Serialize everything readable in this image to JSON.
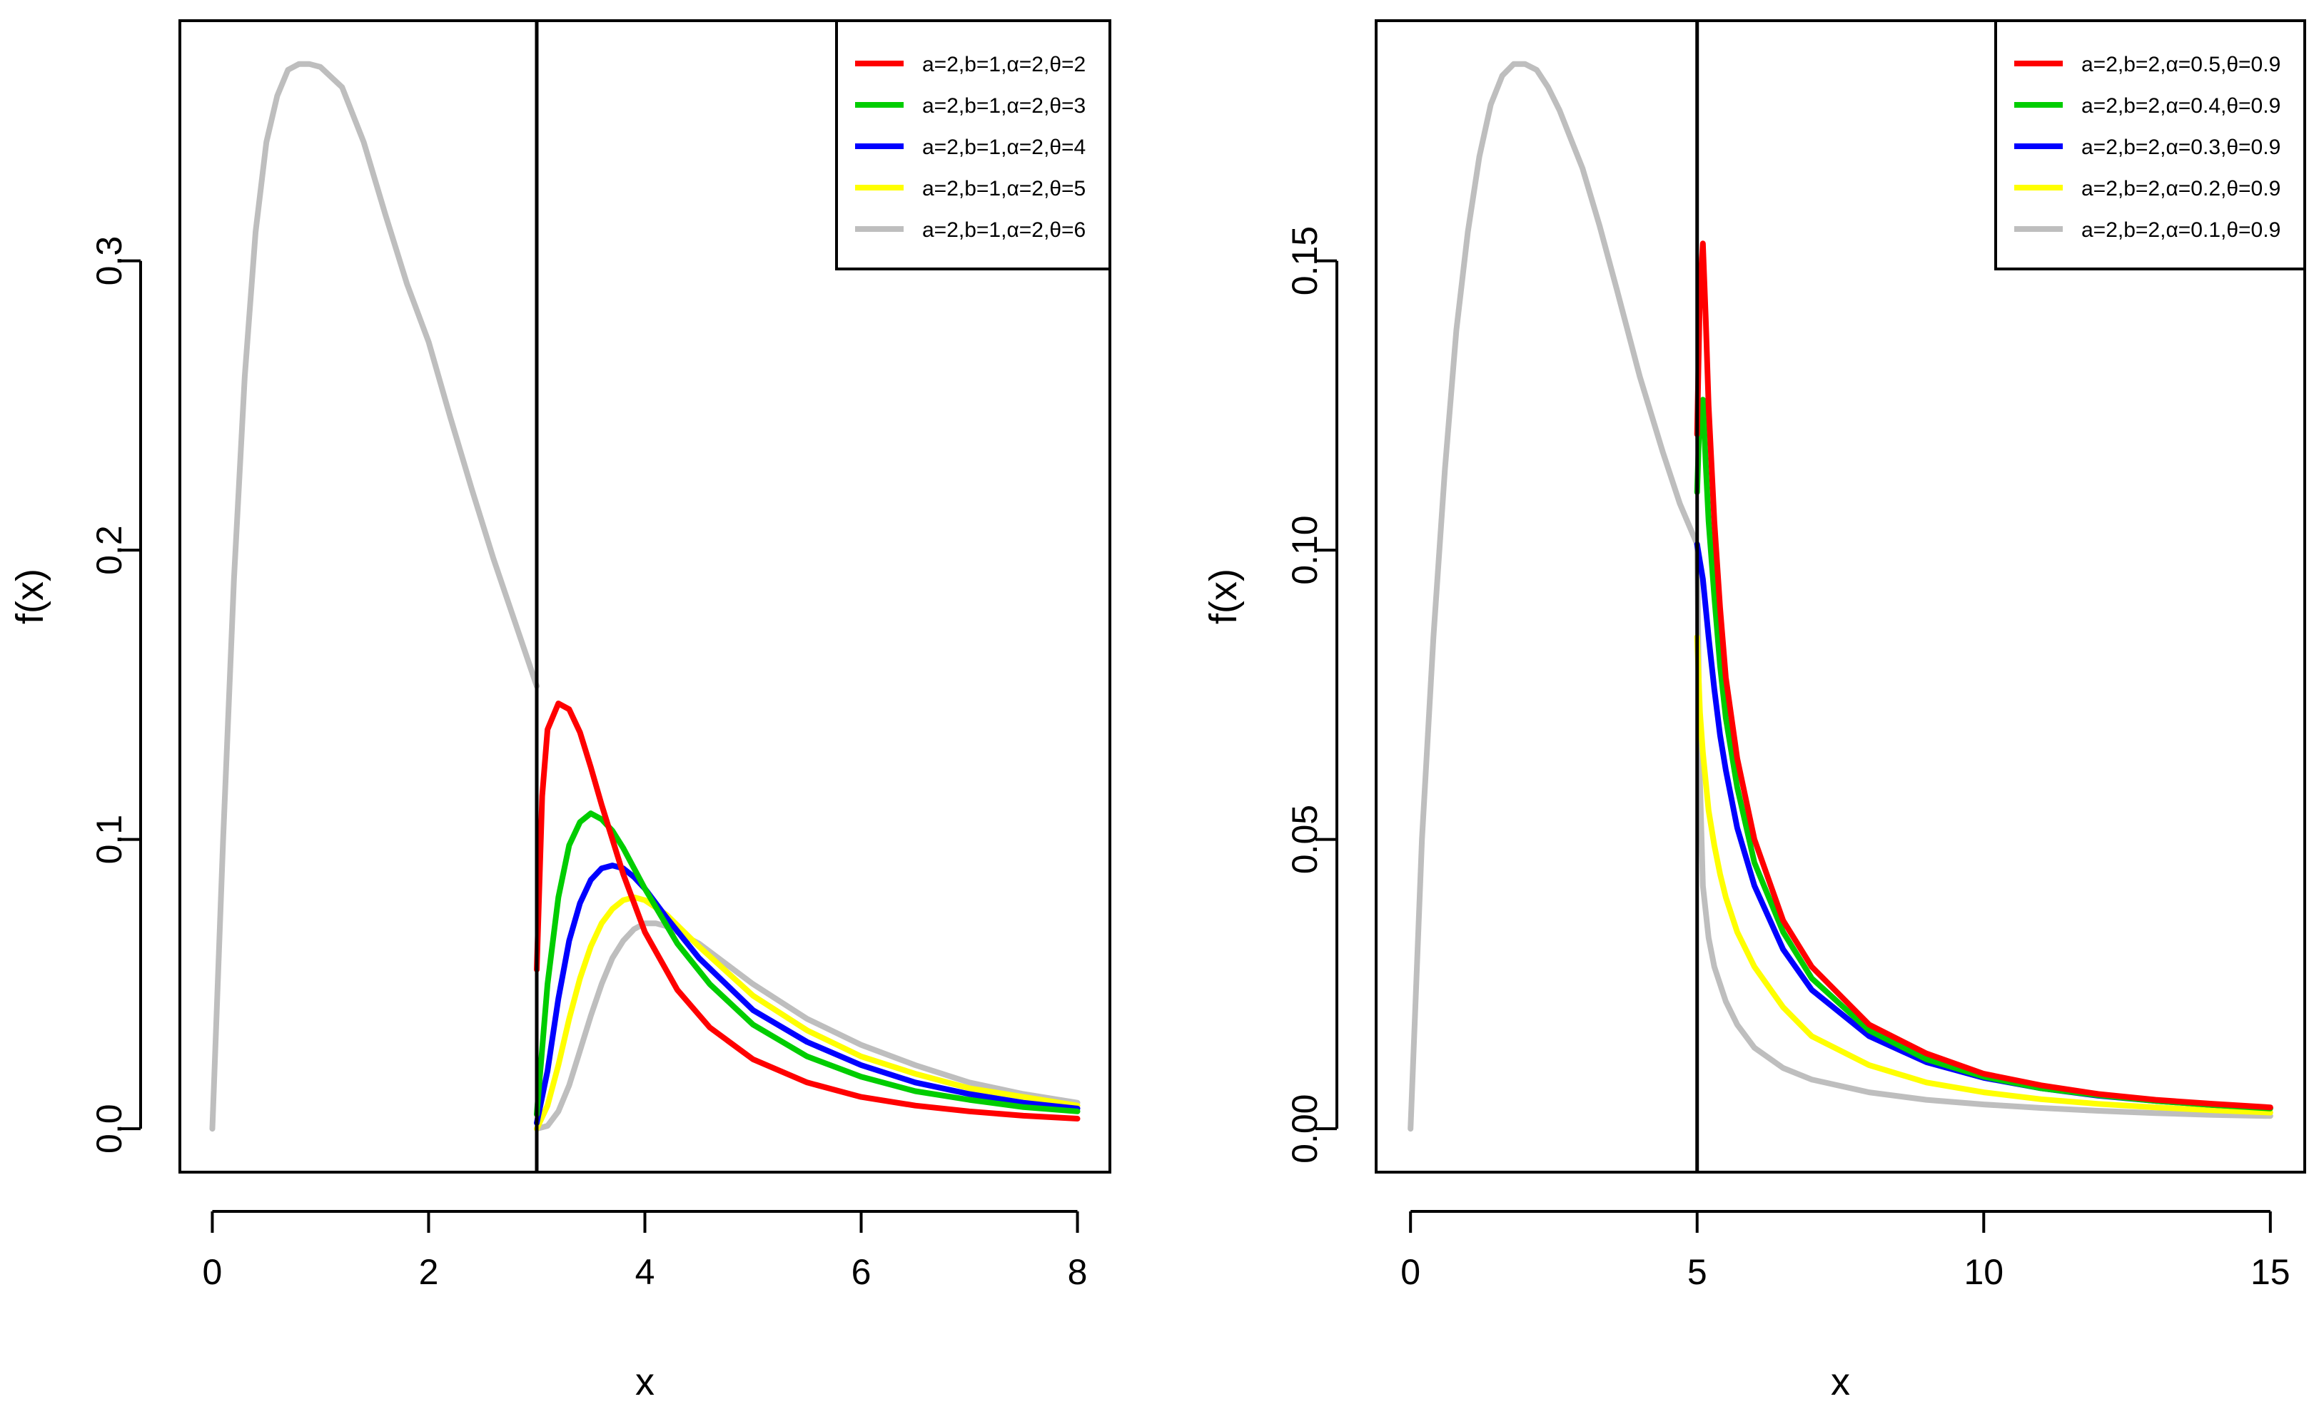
{
  "chart_data": [
    {
      "type": "line",
      "xlabel": "x",
      "ylabel": "f(x)",
      "xlim": [
        -0.3,
        8.3
      ],
      "ylim": [
        -0.015,
        0.383
      ],
      "xticks": [
        0,
        2,
        4,
        6,
        8
      ],
      "xtick_labels": [
        "0",
        "2",
        "4",
        "6",
        "8"
      ],
      "yticks": [
        0.0,
        0.1,
        0.2,
        0.3
      ],
      "ytick_labels": [
        "0.0",
        "0.1",
        "0.2",
        "0.3"
      ],
      "vline": 3,
      "legend_position": "top-right",
      "base_curve": {
        "color": "#bebebe",
        "x": [
          0,
          0.1,
          0.2,
          0.3,
          0.4,
          0.5,
          0.6,
          0.7,
          0.8,
          0.9,
          1.0,
          1.2,
          1.4,
          1.6,
          1.8,
          2.0,
          2.2,
          2.4,
          2.6,
          2.8,
          3.0
        ],
        "y": [
          0,
          0.1,
          0.19,
          0.26,
          0.31,
          0.341,
          0.357,
          0.366,
          0.368,
          0.368,
          0.367,
          0.36,
          0.341,
          0.316,
          0.292,
          0.272,
          0.246,
          0.221,
          0.197,
          0.175,
          0.153
        ]
      },
      "series": [
        {
          "name": "a=2,b=1,α=2,θ=2",
          "color": "#ff0000",
          "x": [
            3.0,
            3.05,
            3.1,
            3.2,
            3.3,
            3.4,
            3.5,
            3.6,
            3.8,
            4.0,
            4.3,
            4.6,
            5.0,
            5.5,
            6.0,
            6.5,
            7.0,
            7.5,
            8.0
          ],
          "y": [
            0.055,
            0.115,
            0.138,
            0.147,
            0.145,
            0.137,
            0.125,
            0.112,
            0.088,
            0.068,
            0.048,
            0.035,
            0.024,
            0.016,
            0.011,
            0.008,
            0.006,
            0.0045,
            0.0035
          ]
        },
        {
          "name": "a=2,b=1,α=2,θ=3",
          "color": "#00cd00",
          "x": [
            3.0,
            3.1,
            3.2,
            3.3,
            3.4,
            3.5,
            3.6,
            3.7,
            3.8,
            4.0,
            4.3,
            4.6,
            5.0,
            5.5,
            6.0,
            6.5,
            7.0,
            7.5,
            8.0
          ],
          "y": [
            0.005,
            0.05,
            0.08,
            0.098,
            0.106,
            0.109,
            0.107,
            0.103,
            0.097,
            0.083,
            0.064,
            0.05,
            0.036,
            0.025,
            0.018,
            0.013,
            0.01,
            0.0075,
            0.006
          ]
        },
        {
          "name": "a=2,b=1,α=2,θ=4",
          "color": "#0000ff",
          "x": [
            3.0,
            3.1,
            3.2,
            3.3,
            3.4,
            3.5,
            3.6,
            3.7,
            3.8,
            3.9,
            4.0,
            4.2,
            4.5,
            5.0,
            5.5,
            6.0,
            6.5,
            7.0,
            7.5,
            8.0
          ],
          "y": [
            0.002,
            0.02,
            0.045,
            0.065,
            0.078,
            0.086,
            0.09,
            0.091,
            0.09,
            0.087,
            0.083,
            0.073,
            0.059,
            0.041,
            0.03,
            0.022,
            0.016,
            0.012,
            0.009,
            0.007
          ]
        },
        {
          "name": "a=2,b=1,α=2,θ=5",
          "color": "#ffff00",
          "x": [
            3.0,
            3.1,
            3.2,
            3.3,
            3.4,
            3.5,
            3.6,
            3.7,
            3.8,
            3.9,
            4.0,
            4.2,
            4.5,
            5.0,
            5.5,
            6.0,
            6.5,
            7.0,
            7.5,
            8.0
          ],
          "y": [
            0.0,
            0.008,
            0.022,
            0.038,
            0.052,
            0.063,
            0.071,
            0.076,
            0.079,
            0.08,
            0.079,
            0.074,
            0.063,
            0.046,
            0.034,
            0.025,
            0.019,
            0.014,
            0.011,
            0.008
          ]
        },
        {
          "name": "a=2,b=1,α=2,θ=6",
          "color": "#bebebe",
          "x": [
            3.0,
            3.1,
            3.2,
            3.3,
            3.4,
            3.5,
            3.6,
            3.7,
            3.8,
            3.9,
            4.0,
            4.1,
            4.2,
            4.5,
            5.0,
            5.5,
            6.0,
            6.5,
            7.0,
            7.5,
            8.0
          ],
          "y": [
            0.0,
            0.001,
            0.006,
            0.015,
            0.027,
            0.039,
            0.05,
            0.059,
            0.065,
            0.069,
            0.071,
            0.071,
            0.07,
            0.064,
            0.05,
            0.038,
            0.029,
            0.022,
            0.016,
            0.012,
            0.009
          ]
        }
      ]
    },
    {
      "type": "line",
      "xlabel": "x",
      "ylabel": "f(x)",
      "xlim": [
        -0.6,
        15.6
      ],
      "ylim": [
        -0.0075,
        0.1915
      ],
      "xticks": [
        0,
        5,
        10,
        15
      ],
      "xtick_labels": [
        "0",
        "5",
        "10",
        "15"
      ],
      "yticks": [
        0.0,
        0.05,
        0.1,
        0.15
      ],
      "ytick_labels": [
        "0.00",
        "0.05",
        "0.10",
        "0.15"
      ],
      "vline": 5,
      "legend_position": "top-right",
      "base_curve": {
        "color": "#bebebe",
        "x": [
          0,
          0.2,
          0.4,
          0.6,
          0.8,
          1.0,
          1.2,
          1.4,
          1.6,
          1.8,
          2.0,
          2.2,
          2.4,
          2.6,
          2.8,
          3.0,
          3.3,
          3.6,
          4.0,
          4.4,
          4.7,
          5.0
        ],
        "y": [
          0,
          0.05,
          0.085,
          0.114,
          0.138,
          0.155,
          0.168,
          0.177,
          0.182,
          0.184,
          0.184,
          0.183,
          0.18,
          0.176,
          0.171,
          0.166,
          0.156,
          0.145,
          0.13,
          0.117,
          0.108,
          0.101
        ]
      },
      "series": [
        {
          "name": "a=2,b=2,α=0.5,θ=0.9",
          "color": "#ff0000",
          "x": [
            5.0,
            5.05,
            5.1,
            5.15,
            5.2,
            5.3,
            5.4,
            5.5,
            5.7,
            6.0,
            6.5,
            7.0,
            8.0,
            9.0,
            10.0,
            11.0,
            12.0,
            13.0,
            14.0,
            15.0
          ],
          "y": [
            0.12,
            0.145,
            0.153,
            0.14,
            0.125,
            0.105,
            0.09,
            0.078,
            0.064,
            0.05,
            0.036,
            0.028,
            0.018,
            0.013,
            0.0095,
            0.0075,
            0.006,
            0.005,
            0.0043,
            0.0037
          ]
        },
        {
          "name": "a=2,b=2,α=0.4,θ=0.9",
          "color": "#00cd00",
          "x": [
            5.0,
            5.05,
            5.1,
            5.15,
            5.2,
            5.3,
            5.4,
            5.5,
            5.7,
            6.0,
            6.5,
            7.0,
            8.0,
            9.0,
            10.0,
            11.0,
            12.0,
            13.0,
            14.0,
            15.0
          ],
          "y": [
            0.11,
            0.125,
            0.126,
            0.115,
            0.105,
            0.092,
            0.08,
            0.071,
            0.059,
            0.046,
            0.034,
            0.026,
            0.017,
            0.012,
            0.009,
            0.007,
            0.0058,
            0.0048,
            0.0041,
            0.0035
          ]
        },
        {
          "name": "a=2,b=2,α=0.3,θ=0.9",
          "color": "#0000ff",
          "x": [
            5.0,
            5.05,
            5.1,
            5.15,
            5.2,
            5.3,
            5.4,
            5.5,
            5.7,
            6.0,
            6.5,
            7.0,
            8.0,
            9.0,
            10.0,
            11.0,
            12.0,
            13.0,
            14.0,
            15.0
          ],
          "y": [
            0.101,
            0.098,
            0.095,
            0.09,
            0.085,
            0.076,
            0.068,
            0.062,
            0.052,
            0.042,
            0.031,
            0.024,
            0.016,
            0.0115,
            0.0088,
            0.007,
            0.0057,
            0.0048,
            0.0041,
            0.0036
          ]
        },
        {
          "name": "a=2,b=2,α=0.2,θ=0.9",
          "color": "#ffff00",
          "x": [
            5.0,
            5.05,
            5.1,
            5.15,
            5.2,
            5.3,
            5.4,
            5.5,
            5.7,
            6.0,
            6.5,
            7.0,
            8.0,
            9.0,
            10.0,
            11.0,
            12.0,
            13.0,
            14.0,
            15.0
          ],
          "y": [
            0.085,
            0.072,
            0.065,
            0.06,
            0.055,
            0.049,
            0.044,
            0.04,
            0.034,
            0.028,
            0.021,
            0.016,
            0.011,
            0.008,
            0.0063,
            0.0051,
            0.0043,
            0.0037,
            0.0032,
            0.0028
          ]
        },
        {
          "name": "a=2,b=2,α=0.1,θ=0.9",
          "color": "#bebebe",
          "x": [
            5.0,
            5.05,
            5.1,
            5.2,
            5.3,
            5.5,
            5.7,
            6.0,
            6.5,
            7.0,
            8.0,
            9.0,
            10.0,
            11.0,
            12.0,
            13.0,
            14.0,
            15.0
          ],
          "y": [
            0.101,
            0.06,
            0.042,
            0.033,
            0.028,
            0.022,
            0.018,
            0.014,
            0.0105,
            0.0085,
            0.0063,
            0.005,
            0.0042,
            0.0036,
            0.0031,
            0.0027,
            0.0024,
            0.0022
          ]
        }
      ]
    }
  ]
}
